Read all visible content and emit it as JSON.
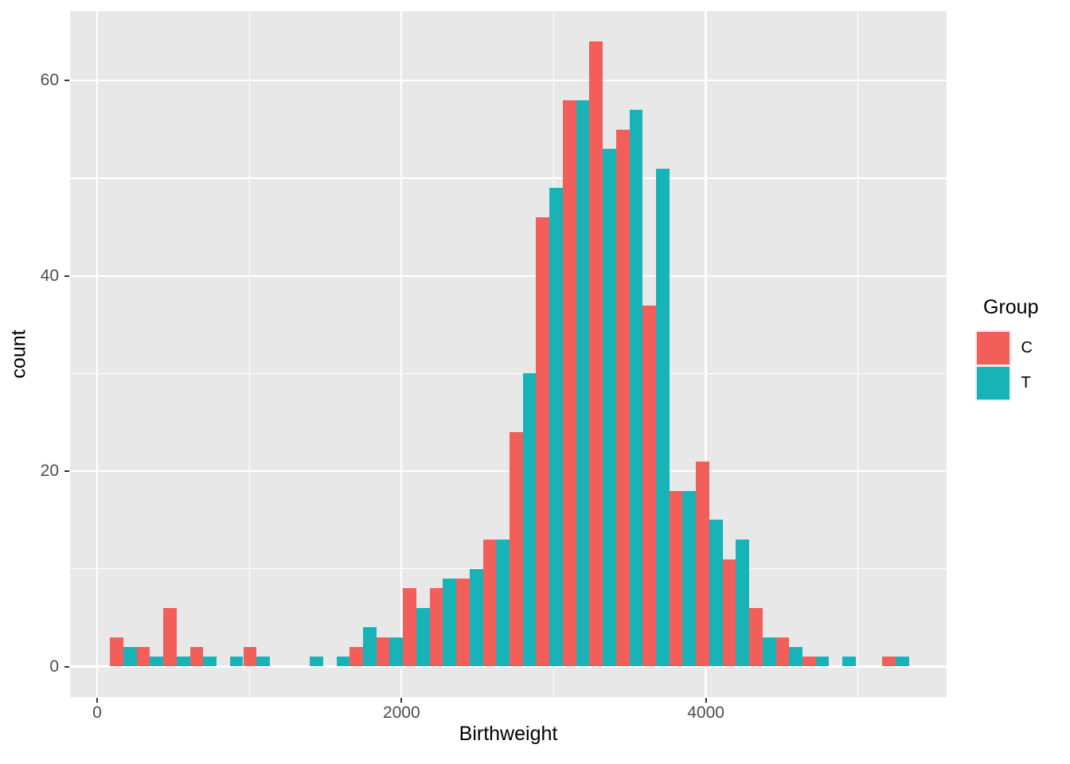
{
  "figure": {
    "x_title": "Birthweight",
    "y_title": "count",
    "legend": {
      "title": "Group",
      "entries": [
        {
          "label": "C",
          "color": "#F25E59"
        },
        {
          "label": "T",
          "color": "#18B3B6"
        }
      ]
    }
  },
  "colors": {
    "panel_background": "#E8E8E8",
    "grid": "#FFFFFF",
    "tick_text": "#4D4D4D",
    "axis_title_text": "#000000",
    "series_C": "#F25E59",
    "series_T": "#18B3B6"
  },
  "chart_data": {
    "type": "bar",
    "subtype": "dodged_histogram",
    "title": "",
    "xlabel": "Birthweight",
    "ylabel": "count",
    "legend_title": "Group",
    "legend_position": "right",
    "grid": "on",
    "bin_width": 175,
    "bin_centers": [
      172.5,
      347.5,
      522.5,
      697.5,
      872.5,
      1047.5,
      1222.5,
      1397.5,
      1572.5,
      1747.5,
      1922.5,
      2097.5,
      2272.5,
      2447.5,
      2622.5,
      2797.5,
      2972.5,
      3147.5,
      3322.5,
      3497.5,
      3672.5,
      3847.5,
      4022.5,
      4197.5,
      4372.5,
      4547.5,
      4722.5,
      4897.5,
      5072.5,
      5247.5
    ],
    "series": [
      {
        "name": "C",
        "color": "#F25E59",
        "values": [
          3,
          2,
          6,
          2,
          0,
          2,
          0,
          0,
          0,
          2,
          3,
          8,
          8,
          9,
          13,
          24,
          46,
          58,
          64,
          55,
          37,
          18,
          21,
          11,
          6,
          3,
          1,
          0,
          0,
          1
        ]
      },
      {
        "name": "T",
        "color": "#18B3B6",
        "values": [
          2,
          1,
          1,
          1,
          1,
          1,
          0,
          1,
          1,
          4,
          3,
          6,
          9,
          10,
          13,
          30,
          49,
          58,
          53,
          57,
          51,
          18,
          15,
          13,
          3,
          2,
          1,
          1,
          0,
          1
        ]
      }
    ],
    "x_axis": {
      "major_ticks": [
        0,
        2000,
        4000
      ],
      "minor_ticks": [
        1000,
        3000,
        5000
      ],
      "xlim": [
        -180,
        5595
      ]
    },
    "y_axis": {
      "major_ticks": [
        0,
        20,
        40,
        60
      ],
      "minor_ticks": [
        10,
        30,
        50
      ],
      "ylim": [
        -3.1,
        67
      ]
    }
  }
}
